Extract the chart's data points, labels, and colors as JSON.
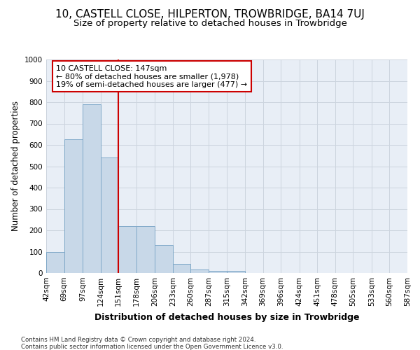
{
  "title": "10, CASTELL CLOSE, HILPERTON, TROWBRIDGE, BA14 7UJ",
  "subtitle": "Size of property relative to detached houses in Trowbridge",
  "xlabel": "Distribution of detached houses by size in Trowbridge",
  "ylabel": "Number of detached properties",
  "footnote1": "Contains HM Land Registry data © Crown copyright and database right 2024.",
  "footnote2": "Contains public sector information licensed under the Open Government Licence v3.0.",
  "bar_edges": [
    42,
    69,
    97,
    124,
    151,
    178,
    206,
    233,
    260,
    287,
    315,
    342,
    369,
    396,
    424,
    451,
    478,
    505,
    533,
    560,
    587
  ],
  "bar_heights": [
    100,
    625,
    790,
    540,
    220,
    220,
    130,
    42,
    15,
    10,
    10,
    0,
    0,
    0,
    0,
    0,
    0,
    0,
    0,
    0
  ],
  "bar_color": "#c8d8e8",
  "bar_edge_color": "#7fa8c8",
  "vline_x": 151,
  "vline_color": "#cc0000",
  "annotation_line1": "10 CASTELL CLOSE: 147sqm",
  "annotation_line2": "← 80% of detached houses are smaller (1,978)",
  "annotation_line3": "19% of semi-detached houses are larger (477) →",
  "annotation_box_color": "#cc0000",
  "ylim": [
    0,
    1000
  ],
  "yticks": [
    0,
    100,
    200,
    300,
    400,
    500,
    600,
    700,
    800,
    900,
    1000
  ],
  "grid_color": "#ccd4de",
  "background_color": "#e8eef6",
  "title_fontsize": 11,
  "subtitle_fontsize": 9.5,
  "xlabel_fontsize": 9,
  "ylabel_fontsize": 8.5,
  "tick_fontsize": 7.5,
  "annotation_fontsize": 8
}
